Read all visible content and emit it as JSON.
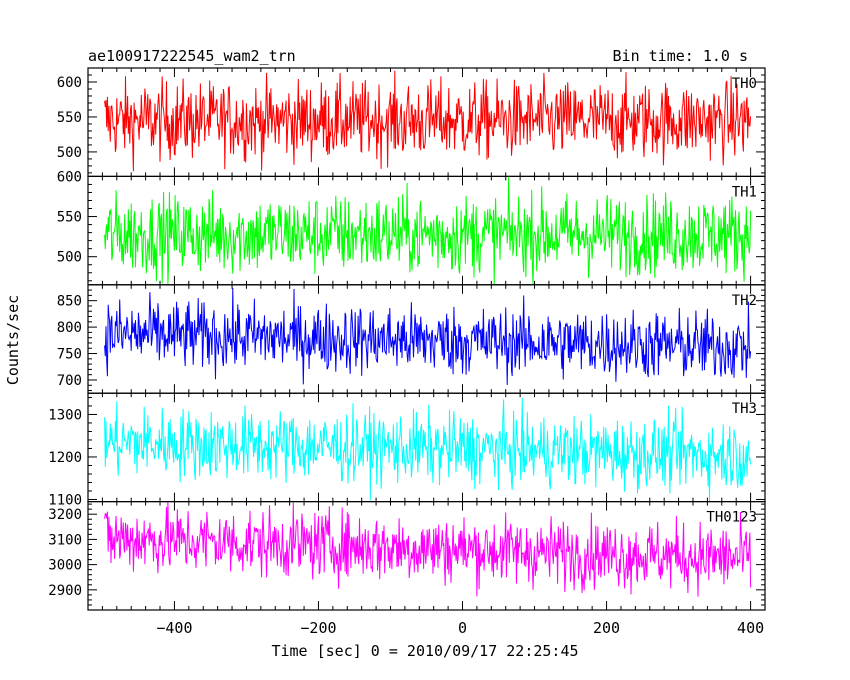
{
  "chart_data": {
    "type": "line",
    "title": "ae100917222545_wam2_trn",
    "subtitle": "Bin time: 1.0 s",
    "xlabel": "Time [sec] 0 = 2010/09/17 22:25:45",
    "ylabel": "Counts/sec",
    "xlim": [
      -520,
      420
    ],
    "x_range": [
      -497,
      400
    ],
    "bin_time": 1.0,
    "x_ticks": [
      -400,
      -200,
      0,
      200,
      400
    ],
    "x_tick_labels": [
      "−400",
      "−200",
      "0",
      "200",
      "400"
    ],
    "panels": [
      {
        "name": "TH0",
        "color": "#ff0000",
        "ylim": [
          465,
          620
        ],
        "yticks": [
          500,
          550,
          600
        ],
        "mean": 545,
        "amplitude": 28,
        "trend": 0
      },
      {
        "name": "TH1",
        "color": "#00ff00",
        "ylim": [
          465,
          600
        ],
        "yticks": [
          500,
          550,
          600
        ],
        "mean": 528,
        "amplitude": 25,
        "trend": 0
      },
      {
        "name": "TH2",
        "color": "#0000ff",
        "ylim": [
          675,
          880
        ],
        "yticks": [
          700,
          750,
          800,
          850
        ],
        "mean": 775,
        "amplitude": 33,
        "trend": -25
      },
      {
        "name": "TH3",
        "color": "#00ffff",
        "ylim": [
          1095,
          1350
        ],
        "yticks": [
          1100,
          1200,
          1300
        ],
        "mean": 1220,
        "amplitude": 42,
        "trend": -30
      },
      {
        "name": "TH0123",
        "color": "#ff00ff",
        "ylim": [
          2820,
          3250
        ],
        "yticks": [
          2900,
          3000,
          3100,
          3200
        ],
        "mean": 3065,
        "amplitude": 68,
        "trend": -80
      }
    ]
  }
}
